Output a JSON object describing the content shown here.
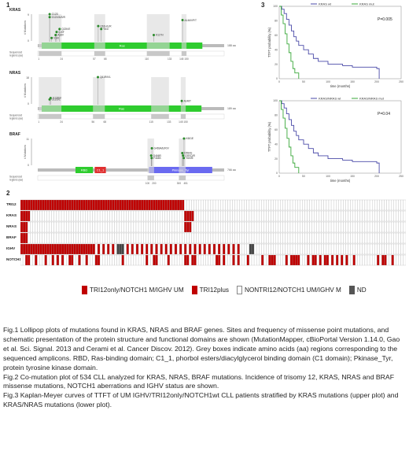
{
  "fig1": {
    "panel_number": "1",
    "aa_unit": "aa",
    "seq_label_line1": "Sequenced",
    "seq_label_line2": "regions (aa)",
    "ylabel": "# Mutations",
    "genes": [
      {
        "name": "KRAS",
        "domain": "Ras",
        "length_label": "188 aa",
        "yticks": [
          "0",
          "9"
        ],
        "mutations": [
          {
            "label": "G12D",
            "pos": 12,
            "count": 9
          },
          {
            "label": "G12V/A/S/R",
            "pos": 12,
            "count": 8
          },
          {
            "label": "Q22K/E",
            "pos": 22,
            "count": 4
          },
          {
            "label": "L19F",
            "pos": 19,
            "count": 3
          },
          {
            "label": "A18V",
            "pos": 18,
            "count": 2
          },
          {
            "label": "V14I",
            "pos": 14,
            "count": 1
          },
          {
            "label": "Q61H/L/R",
            "pos": 61,
            "count": 5
          },
          {
            "label": "Y64I",
            "pos": 64,
            "count": 4
          },
          {
            "label": "K117N",
            "pos": 117,
            "count": 2
          },
          {
            "label": "A146V/P/T",
            "pos": 146,
            "count": 7
          }
        ],
        "regions": [
          "1",
          "24",
          "57",
          "68",
          "110",
          "133",
          "145",
          "150"
        ]
      },
      {
        "name": "NRAS",
        "domain": "Ras",
        "length_label": "189 aa",
        "yticks": [
          "0",
          "18"
        ],
        "mutations": [
          {
            "label": "Q61R/K/L",
            "pos": 61,
            "count": 18
          },
          {
            "label": "G13D/V",
            "pos": 13,
            "count": 4
          },
          {
            "label": "G12D/C",
            "pos": 12,
            "count": 3
          },
          {
            "label": "A146T",
            "pos": 146,
            "count": 2
          }
        ],
        "regions": [
          "1",
          "24",
          "56",
          "68",
          "115",
          "133",
          "145",
          "150"
        ]
      },
      {
        "name": "BRAF",
        "domain_rbd": "RBD",
        "domain_c1": "C1_1",
        "domain_kinase": "Pkinase_Tyr",
        "length_label": "766 aa",
        "yticks": [
          "0",
          "11"
        ],
        "mutations": [
          {
            "label": "G469A/E/R/V",
            "pos": 469,
            "count": 7
          },
          {
            "label": "G466R",
            "pos": 466,
            "count": 4
          },
          {
            "label": "F468S",
            "pos": 468,
            "count": 3
          },
          {
            "label": "K601E",
            "pos": 601,
            "count": 11
          },
          {
            "label": "D594G",
            "pos": 594,
            "count": 5
          },
          {
            "label": "L597Q/R",
            "pos": 597,
            "count": 4
          },
          {
            "label": "Y600E",
            "pos": 600,
            "count": 3
          }
        ],
        "regions": [
          "100",
          "200",
          "300",
          "451",
          "478",
          "580",
          "608",
          "700"
        ]
      }
    ]
  },
  "fig2": {
    "panel_number": "2",
    "rows": [
      "TRI12",
      "KRAS",
      "NRAS",
      "BRAF",
      "IGHV",
      "NOTCH1"
    ],
    "legend": [
      {
        "label": "TRI12only/NOTCH1 M/IGHV UM",
        "color": "#c00000"
      },
      {
        "label": "TRI12plus",
        "color": "#c00000"
      },
      {
        "label": "NONTRI12/NOTCH1 UM/IGHV M",
        "color": "#ffffff"
      },
      {
        "label": "ND",
        "color": "#555555"
      }
    ]
  },
  "fig3": {
    "panel_number": "3",
    "plots": [
      {
        "ylabel": "TTFT probability (%)",
        "xlabel": "time (months)",
        "pvalue": "P=0.005",
        "legend": [
          "KRAS wt",
          "KRAS mut"
        ],
        "yticks": [
          "0",
          "20",
          "40",
          "60",
          "80",
          "100"
        ],
        "xticks": [
          "0",
          "50",
          "100",
          "150",
          "200",
          "250"
        ]
      },
      {
        "ylabel": "TTFT probability (%)",
        "xlabel": "time (months)",
        "pvalue": "P=0.04",
        "legend": [
          "KRAS/NRAS wt",
          "KRAS/NRAS mut"
        ],
        "yticks": [
          "0",
          "20",
          "40",
          "60",
          "80",
          "100"
        ],
        "xticks": [
          "0",
          "50",
          "100",
          "150",
          "200",
          "250"
        ]
      }
    ],
    "colors": {
      "wt": "#4a4aa8",
      "mut": "#3aa83a"
    }
  },
  "caption": {
    "p1": "Fig.1 Lollipop plots of mutations found in KRAS, NRAS and BRAF genes. Sites and frequency of missense point mutations, and schematic presentation of the protein structure and functional domains are shown (MutationMapper, cBioPortal Version 1.14.0, Gao et al. Sci. Signal. 2013 and Cerami et al. Cancer Discov. 2012). Grey boxes indicate amino acids (aa) regions corresponding to the sequenced amplicons. RBD, Ras-binding domain; C1_1, phorbol esters/diacylglycerol binding domain (C1 domain); Pkinase_Tyr, protein tyrosine kinase domain.",
    "p2": "Fig.2 Co-mutation plot of 534 CLL analyzed for KRAS, NRAS, BRAF mutations. Incidence of trisomy 12, KRAS, NRAS and BRAF missense mutations, NOTCH1 aberrations and IGHV status are shown.",
    "p3": "Fig.3 Kaplan-Meyer curves of TTFT of UM IGHV/TRI12only/NOTCH1wt CLL patients stratified by KRAS mutations (upper plot) and KRAS/NRAS mutations (lower plot)."
  },
  "colors": {
    "domain_green": "#2ecc2e",
    "domain_blue": "#6a6af0",
    "heat_red": "#c00000",
    "heat_grey": "#a0a0a0",
    "heat_dark": "#444444"
  }
}
